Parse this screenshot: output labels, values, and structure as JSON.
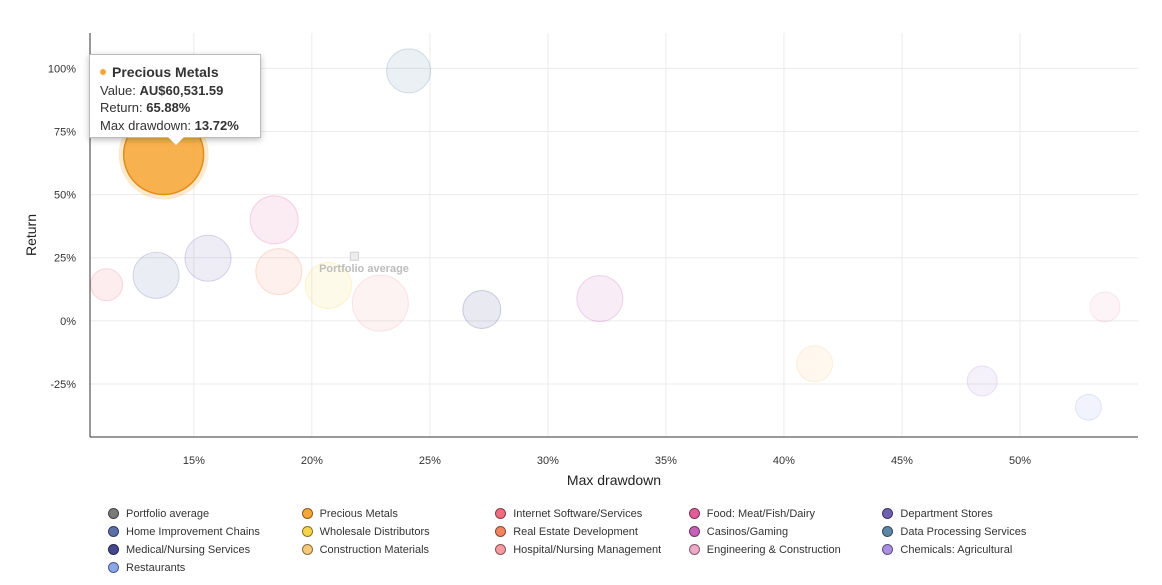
{
  "chart_data": {
    "type": "scatter",
    "xlabel": "Max drawdown",
    "ylabel": "Return",
    "xlim": [
      10.6,
      55
    ],
    "ylim": [
      -46,
      114
    ],
    "xticks": [
      15,
      20,
      25,
      30,
      35,
      40,
      45,
      50
    ],
    "yticks": [
      -25,
      0,
      25,
      50,
      75,
      100
    ],
    "xtick_labels": [
      "15%",
      "20%",
      "25%",
      "30%",
      "35%",
      "40%",
      "45%",
      "50%"
    ],
    "ytick_labels": [
      "-25%",
      "0%",
      "25%",
      "50%",
      "75%",
      "100%"
    ],
    "grid": true,
    "annotation": "Portfolio average",
    "series": [
      {
        "name": "Portfolio average",
        "color": "#7a7a7a",
        "points": [
          {
            "x": 21.8,
            "y": 25.6,
            "r": 4
          }
        ]
      },
      {
        "name": "Precious Metals",
        "color": "#f7a738",
        "points": [
          {
            "x": 13.72,
            "y": 65.88,
            "r": 40
          }
        ]
      },
      {
        "name": "Internet Software/Services",
        "color": "#f06d7f",
        "points": [
          {
            "x": 11.3,
            "y": 14.3,
            "r": 16
          }
        ]
      },
      {
        "name": "Food: Meat/Fish/Dairy",
        "color": "#e25c9a",
        "points": [
          {
            "x": 18.4,
            "y": 40.0,
            "r": 24
          }
        ]
      },
      {
        "name": "Department Stores",
        "color": "#7060b0",
        "points": [
          {
            "x": 15.6,
            "y": 24.8,
            "r": 23
          }
        ]
      },
      {
        "name": "Home Improvement Chains",
        "color": "#5a6ea8",
        "points": [
          {
            "x": 13.4,
            "y": 18.0,
            "r": 23
          }
        ]
      },
      {
        "name": "Wholesale Distributors",
        "color": "#f7d34a",
        "points": [
          {
            "x": 20.7,
            "y": 14.0,
            "r": 23
          }
        ]
      },
      {
        "name": "Real Estate Development",
        "color": "#f4845f",
        "points": [
          {
            "x": 18.6,
            "y": 19.5,
            "r": 23
          }
        ]
      },
      {
        "name": "Casinos/Gaming",
        "color": "#c860b8",
        "points": [
          {
            "x": 32.2,
            "y": 8.8,
            "r": 23
          }
        ]
      },
      {
        "name": "Data Processing Services",
        "color": "#5b86a6",
        "points": [
          {
            "x": 24.1,
            "y": 99.0,
            "r": 22
          }
        ]
      },
      {
        "name": "Medical/Nursing Services",
        "color": "#46488e",
        "points": [
          {
            "x": 27.2,
            "y": 4.5,
            "r": 19
          }
        ]
      },
      {
        "name": "Construction Materials",
        "color": "#f7c87a",
        "points": [
          {
            "x": 41.3,
            "y": -17.0,
            "r": 18
          }
        ]
      },
      {
        "name": "Hospital/Nursing Management",
        "color": "#f59aa0",
        "points": [
          {
            "x": 22.9,
            "y": 7.0,
            "r": 28
          }
        ]
      },
      {
        "name": "Engineering & Construction",
        "color": "#f0a8c8",
        "points": [
          {
            "x": 53.6,
            "y": 5.5,
            "r": 15
          }
        ]
      },
      {
        "name": "Chemicals: Agricultural",
        "color": "#a98fe0",
        "points": [
          {
            "x": 48.4,
            "y": -23.8,
            "r": 15
          }
        ]
      },
      {
        "name": "Restaurants",
        "color": "#8aa6ea",
        "points": [
          {
            "x": 52.9,
            "y": -34.2,
            "r": 13
          }
        ]
      }
    ],
    "legend": [
      "Portfolio average",
      "Precious Metals",
      "Internet Software/Services",
      "Food: Meat/Fish/Dairy",
      "Department Stores",
      "Home Improvement Chains",
      "Wholesale Distributors",
      "Real Estate Development",
      "Casinos/Gaming",
      "Data Processing Services",
      "Medical/Nursing Services",
      "Construction Materials",
      "Hospital/Nursing Management",
      "Engineering & Construction",
      "Chemicals: Agricultural",
      "Restaurants"
    ],
    "highlighted": "Precious Metals"
  },
  "tooltip": {
    "title": "Precious Metals",
    "value_label": "Value:",
    "value": "AU$60,531.59",
    "return_label": "Return:",
    "return_value": "65.88%",
    "drawdown_label": "Max drawdown:",
    "drawdown_value": "13.72%",
    "color": "#f7a738"
  }
}
